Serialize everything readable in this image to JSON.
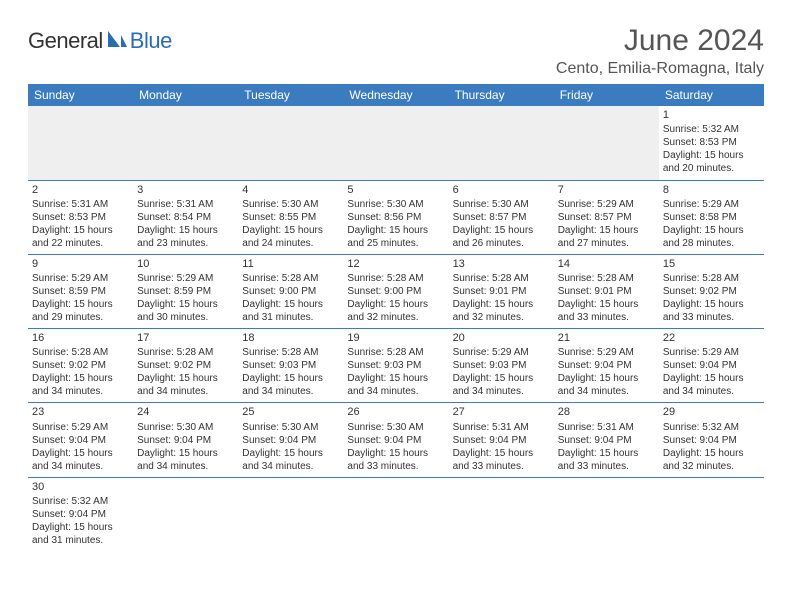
{
  "logo": {
    "general": "General",
    "blue": "Blue"
  },
  "title": {
    "monthYear": "June 2024",
    "location": "Cento, Emilia-Romagna, Italy"
  },
  "colors": {
    "headerBar": "#3b7bbf",
    "blankFill": "#efefef",
    "accentBlue": "#2a6db5",
    "text": "#333333"
  },
  "dayHeaders": [
    "Sunday",
    "Monday",
    "Tuesday",
    "Wednesday",
    "Thursday",
    "Friday",
    "Saturday"
  ],
  "weeks": [
    [
      null,
      null,
      null,
      null,
      null,
      null,
      {
        "n": "1",
        "sr": "5:32 AM",
        "ss": "8:53 PM",
        "dl": "15 hours and 20 minutes."
      }
    ],
    [
      {
        "n": "2",
        "sr": "5:31 AM",
        "ss": "8:53 PM",
        "dl": "15 hours and 22 minutes."
      },
      {
        "n": "3",
        "sr": "5:31 AM",
        "ss": "8:54 PM",
        "dl": "15 hours and 23 minutes."
      },
      {
        "n": "4",
        "sr": "5:30 AM",
        "ss": "8:55 PM",
        "dl": "15 hours and 24 minutes."
      },
      {
        "n": "5",
        "sr": "5:30 AM",
        "ss": "8:56 PM",
        "dl": "15 hours and 25 minutes."
      },
      {
        "n": "6",
        "sr": "5:30 AM",
        "ss": "8:57 PM",
        "dl": "15 hours and 26 minutes."
      },
      {
        "n": "7",
        "sr": "5:29 AM",
        "ss": "8:57 PM",
        "dl": "15 hours and 27 minutes."
      },
      {
        "n": "8",
        "sr": "5:29 AM",
        "ss": "8:58 PM",
        "dl": "15 hours and 28 minutes."
      }
    ],
    [
      {
        "n": "9",
        "sr": "5:29 AM",
        "ss": "8:59 PM",
        "dl": "15 hours and 29 minutes."
      },
      {
        "n": "10",
        "sr": "5:29 AM",
        "ss": "8:59 PM",
        "dl": "15 hours and 30 minutes."
      },
      {
        "n": "11",
        "sr": "5:28 AM",
        "ss": "9:00 PM",
        "dl": "15 hours and 31 minutes."
      },
      {
        "n": "12",
        "sr": "5:28 AM",
        "ss": "9:00 PM",
        "dl": "15 hours and 32 minutes."
      },
      {
        "n": "13",
        "sr": "5:28 AM",
        "ss": "9:01 PM",
        "dl": "15 hours and 32 minutes."
      },
      {
        "n": "14",
        "sr": "5:28 AM",
        "ss": "9:01 PM",
        "dl": "15 hours and 33 minutes."
      },
      {
        "n": "15",
        "sr": "5:28 AM",
        "ss": "9:02 PM",
        "dl": "15 hours and 33 minutes."
      }
    ],
    [
      {
        "n": "16",
        "sr": "5:28 AM",
        "ss": "9:02 PM",
        "dl": "15 hours and 34 minutes."
      },
      {
        "n": "17",
        "sr": "5:28 AM",
        "ss": "9:02 PM",
        "dl": "15 hours and 34 minutes."
      },
      {
        "n": "18",
        "sr": "5:28 AM",
        "ss": "9:03 PM",
        "dl": "15 hours and 34 minutes."
      },
      {
        "n": "19",
        "sr": "5:28 AM",
        "ss": "9:03 PM",
        "dl": "15 hours and 34 minutes."
      },
      {
        "n": "20",
        "sr": "5:29 AM",
        "ss": "9:03 PM",
        "dl": "15 hours and 34 minutes."
      },
      {
        "n": "21",
        "sr": "5:29 AM",
        "ss": "9:04 PM",
        "dl": "15 hours and 34 minutes."
      },
      {
        "n": "22",
        "sr": "5:29 AM",
        "ss": "9:04 PM",
        "dl": "15 hours and 34 minutes."
      }
    ],
    [
      {
        "n": "23",
        "sr": "5:29 AM",
        "ss": "9:04 PM",
        "dl": "15 hours and 34 minutes."
      },
      {
        "n": "24",
        "sr": "5:30 AM",
        "ss": "9:04 PM",
        "dl": "15 hours and 34 minutes."
      },
      {
        "n": "25",
        "sr": "5:30 AM",
        "ss": "9:04 PM",
        "dl": "15 hours and 34 minutes."
      },
      {
        "n": "26",
        "sr": "5:30 AM",
        "ss": "9:04 PM",
        "dl": "15 hours and 33 minutes."
      },
      {
        "n": "27",
        "sr": "5:31 AM",
        "ss": "9:04 PM",
        "dl": "15 hours and 33 minutes."
      },
      {
        "n": "28",
        "sr": "5:31 AM",
        "ss": "9:04 PM",
        "dl": "15 hours and 33 minutes."
      },
      {
        "n": "29",
        "sr": "5:32 AM",
        "ss": "9:04 PM",
        "dl": "15 hours and 32 minutes."
      }
    ],
    [
      {
        "n": "30",
        "sr": "5:32 AM",
        "ss": "9:04 PM",
        "dl": "15 hours and 31 minutes."
      },
      null,
      null,
      null,
      null,
      null,
      null
    ]
  ],
  "labels": {
    "sunrise": "Sunrise: ",
    "sunset": "Sunset: ",
    "daylight": "Daylight: "
  }
}
